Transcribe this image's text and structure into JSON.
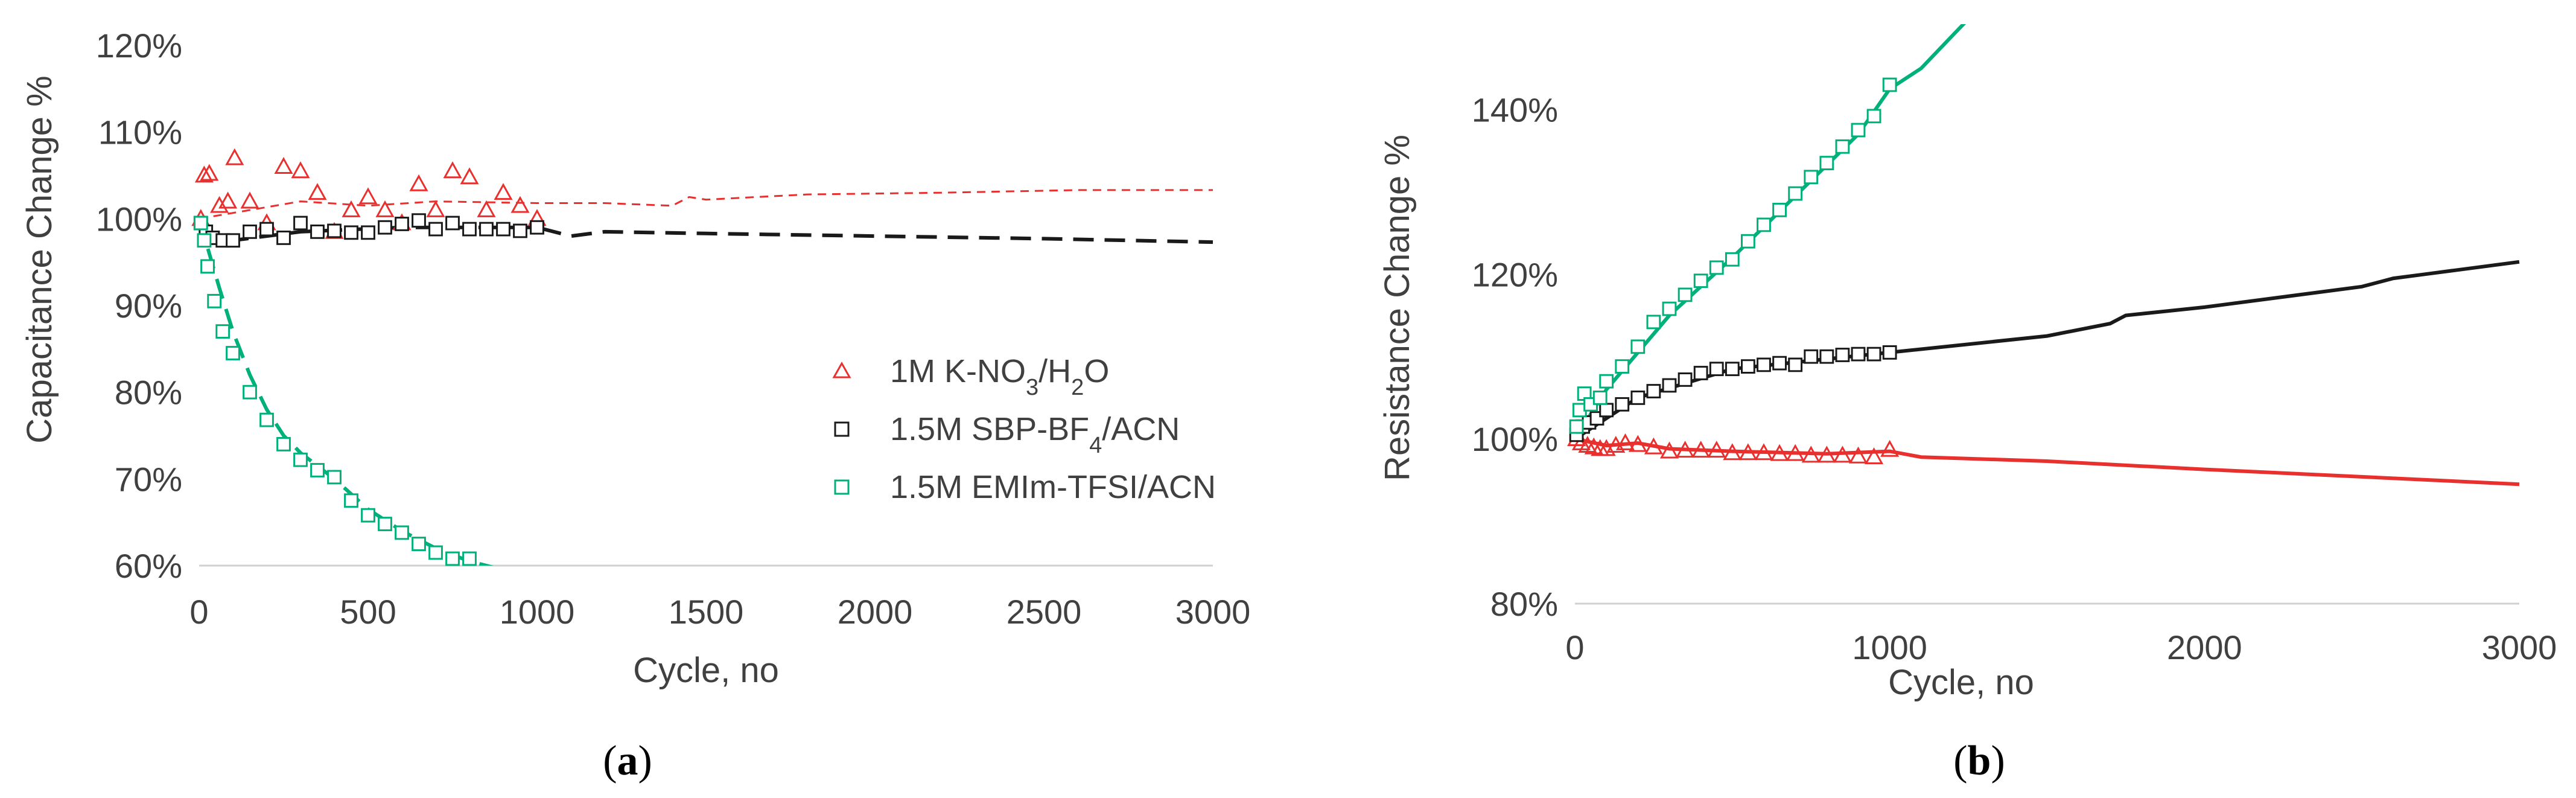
{
  "colors": {
    "red": "#e8302e",
    "black": "#1a1a1a",
    "green": "#00b07a",
    "axis": "#d0d0d0"
  },
  "chart_data": [
    {
      "type": "scatter",
      "panel": "a",
      "caption_letter": "a",
      "xlabel": "Cycle, no",
      "ylabel": "Capacitance Change %",
      "xlim": [
        0,
        3000
      ],
      "ylim": [
        60,
        120
      ],
      "xticks": [
        "0",
        "500",
        "1000",
        "1500",
        "2000",
        "2500",
        "3000"
      ],
      "yticks": [
        "60%",
        "70%",
        "80%",
        "90%",
        "100%",
        "110%",
        "120%"
      ],
      "legend": [
        {
          "series": 0,
          "text": "1M K-NO",
          "sub1": "3",
          "mid": "/H",
          "sub2": "2",
          "end": "O"
        },
        {
          "series": 1,
          "text": "1.5M SBP-BF",
          "sub1": "4",
          "mid": "/ACN",
          "sub2": "",
          "end": ""
        },
        {
          "series": 2,
          "text": "1.5M EMIm-TFSI/ACN",
          "sub1": "",
          "mid": "",
          "sub2": "",
          "end": ""
        }
      ],
      "series": [
        {
          "name": "1M K-NO3/H2O",
          "color": "red",
          "marker": "triangle",
          "dash": "small",
          "points": [
            [
              5,
              100
            ],
            [
              15,
              105
            ],
            [
              30,
              105.2
            ],
            [
              60,
              101.5
            ],
            [
              85,
              102
            ],
            [
              105,
              107
            ],
            [
              150,
              102
            ],
            [
              200,
              99.5
            ],
            [
              250,
              106
            ],
            [
              300,
              105.5
            ],
            [
              350,
              103
            ],
            [
              400,
              98.5
            ],
            [
              450,
              101
            ],
            [
              500,
              102.5
            ],
            [
              550,
              101
            ],
            [
              600,
              99.5
            ],
            [
              650,
              104
            ],
            [
              700,
              101
            ],
            [
              750,
              105.5
            ],
            [
              800,
              104.8
            ],
            [
              850,
              101
            ],
            [
              900,
              103
            ],
            [
              950,
              101.5
            ],
            [
              1000,
              100
            ]
          ],
          "line": [
            [
              0,
              100
            ],
            [
              150,
              101
            ],
            [
              300,
              102
            ],
            [
              500,
              101.5
            ],
            [
              700,
              102
            ],
            [
              1000,
              101.8
            ],
            [
              1200,
              101.8
            ],
            [
              1400,
              101.5
            ],
            [
              1450,
              102.5
            ],
            [
              1500,
              102.2
            ],
            [
              1800,
              102.8
            ],
            [
              2200,
              103
            ],
            [
              2600,
              103.3
            ],
            [
              3000,
              103.3
            ]
          ]
        },
        {
          "name": "1.5M SBP-BF4/ACN",
          "color": "black",
          "marker": "square",
          "dash": "large",
          "points": [
            [
              5,
              99.5
            ],
            [
              20,
              98.5
            ],
            [
              40,
              97.8
            ],
            [
              70,
              97.5
            ],
            [
              100,
              97.5
            ],
            [
              150,
              98.5
            ],
            [
              200,
              98.8
            ],
            [
              250,
              97.8
            ],
            [
              300,
              99.5
            ],
            [
              350,
              98.5
            ],
            [
              400,
              98.6
            ],
            [
              450,
              98.4
            ],
            [
              500,
              98.4
            ],
            [
              550,
              99
            ],
            [
              600,
              99.4
            ],
            [
              650,
              99.8
            ],
            [
              700,
              98.8
            ],
            [
              750,
              99.5
            ],
            [
              800,
              98.8
            ],
            [
              850,
              98.8
            ],
            [
              900,
              98.8
            ],
            [
              950,
              98.6
            ],
            [
              1000,
              99
            ]
          ],
          "line": [
            [
              0,
              99
            ],
            [
              100,
              97.5
            ],
            [
              300,
              98.5
            ],
            [
              600,
              99
            ],
            [
              1000,
              99
            ],
            [
              1100,
              98
            ],
            [
              1200,
              98.5
            ],
            [
              1500,
              98.3
            ],
            [
              2000,
              98
            ],
            [
              2500,
              97.7
            ],
            [
              3000,
              97.3
            ]
          ]
        },
        {
          "name": "1.5M EMIm-TFSI/ACN",
          "color": "green",
          "marker": "square",
          "dash": "large",
          "points": [
            [
              5,
              99.5
            ],
            [
              15,
              97.5
            ],
            [
              25,
              94.5
            ],
            [
              45,
              90.5
            ],
            [
              70,
              87
            ],
            [
              100,
              84.5
            ],
            [
              150,
              80
            ],
            [
              200,
              76.8
            ],
            [
              250,
              74
            ],
            [
              300,
              72.2
            ],
            [
              350,
              71
            ],
            [
              400,
              70.2
            ],
            [
              450,
              67.5
            ],
            [
              500,
              65.8
            ],
            [
              550,
              64.8
            ],
            [
              600,
              63.8
            ],
            [
              650,
              62.5
            ],
            [
              700,
              61.5
            ],
            [
              750,
              60.8
            ],
            [
              800,
              60.8
            ]
          ],
          "line": [
            [
              0,
              100
            ],
            [
              30,
              96
            ],
            [
              60,
              92
            ],
            [
              100,
              87
            ],
            [
              150,
              82
            ],
            [
              200,
              78
            ],
            [
              250,
              75
            ],
            [
              300,
              73
            ],
            [
              400,
              70
            ],
            [
              500,
              66.5
            ],
            [
              600,
              64
            ],
            [
              700,
              62
            ],
            [
              800,
              60.5
            ],
            [
              900,
              59.5
            ]
          ]
        }
      ]
    },
    {
      "type": "line",
      "panel": "b",
      "caption_letter": "b",
      "xlabel": "Cycle, no",
      "ylabel": "Resistance Change %",
      "xlim": [
        0,
        3000
      ],
      "ylim": [
        80,
        150
      ],
      "xticks": [
        "0",
        "1000",
        "2000",
        "3000"
      ],
      "yticks": [
        "80%",
        "100%",
        "120%",
        "140%"
      ],
      "series": [
        {
          "name": "1M K-NO3/H2O",
          "color": "red",
          "marker": "triangle",
          "points": [
            [
              5,
              100
            ],
            [
              20,
              99.5
            ],
            [
              40,
              99.2
            ],
            [
              60,
              99
            ],
            [
              80,
              98.8
            ],
            [
              100,
              98.8
            ],
            [
              130,
              99.2
            ],
            [
              160,
              99.5
            ],
            [
              200,
              99.3
            ],
            [
              250,
              99
            ],
            [
              300,
              98.5
            ],
            [
              350,
              98.6
            ],
            [
              400,
              98.6
            ],
            [
              450,
              98.6
            ],
            [
              500,
              98.3
            ],
            [
              550,
              98.3
            ],
            [
              600,
              98.3
            ],
            [
              650,
              98.2
            ],
            [
              700,
              98.2
            ],
            [
              750,
              98
            ],
            [
              800,
              98
            ],
            [
              850,
              98
            ],
            [
              900,
              97.9
            ],
            [
              950,
              97.8
            ],
            [
              1000,
              98.7
            ]
          ],
          "line": [
            [
              0,
              100
            ],
            [
              100,
              99.2
            ],
            [
              200,
              99.5
            ],
            [
              300,
              98.8
            ],
            [
              500,
              98.5
            ],
            [
              800,
              98.2
            ],
            [
              1000,
              98.5
            ],
            [
              1100,
              97.8
            ],
            [
              1500,
              97.3
            ],
            [
              2000,
              96.3
            ],
            [
              2500,
              95.4
            ],
            [
              3000,
              94.5
            ]
          ]
        },
        {
          "name": "1.5M SBP-BF4/ACN",
          "color": "black",
          "marker": "square",
          "points": [
            [
              5,
              100.5
            ],
            [
              25,
              101.5
            ],
            [
              45,
              102
            ],
            [
              70,
              102.5
            ],
            [
              100,
              103.5
            ],
            [
              150,
              104.2
            ],
            [
              200,
              105
            ],
            [
              250,
              105.8
            ],
            [
              300,
              106.5
            ],
            [
              350,
              107.2
            ],
            [
              400,
              108
            ],
            [
              450,
              108.5
            ],
            [
              500,
              108.5
            ],
            [
              550,
              108.8
            ],
            [
              600,
              109
            ],
            [
              650,
              109.2
            ],
            [
              700,
              109
            ],
            [
              750,
              110
            ],
            [
              800,
              110
            ],
            [
              850,
              110.2
            ],
            [
              900,
              110.3
            ],
            [
              950,
              110.3
            ],
            [
              1000,
              110.5
            ]
          ],
          "line": [
            [
              0,
              100
            ],
            [
              200,
              105
            ],
            [
              500,
              108.5
            ],
            [
              1000,
              110.5
            ],
            [
              1500,
              112.5
            ],
            [
              1700,
              114
            ],
            [
              1750,
              115
            ],
            [
              2000,
              116
            ],
            [
              2500,
              118.5
            ],
            [
              2600,
              119.5
            ],
            [
              2700,
              120
            ],
            [
              3000,
              121.5
            ]
          ]
        },
        {
          "name": "1.5M EMIm-TFSI/ACN",
          "color": "green",
          "marker": "square",
          "points": [
            [
              5,
              101.5
            ],
            [
              15,
              103.5
            ],
            [
              30,
              105.5
            ],
            [
              50,
              104.2
            ],
            [
              80,
              105
            ],
            [
              100,
              107
            ],
            [
              150,
              108.8
            ],
            [
              200,
              111.2
            ],
            [
              250,
              114.2
            ],
            [
              300,
              115.8
            ],
            [
              350,
              117.5
            ],
            [
              400,
              119.2
            ],
            [
              450,
              120.8
            ],
            [
              500,
              121.8
            ],
            [
              550,
              124
            ],
            [
              600,
              126
            ],
            [
              650,
              127.8
            ],
            [
              700,
              129.8
            ],
            [
              750,
              131.8
            ],
            [
              800,
              133.5
            ],
            [
              850,
              135.5
            ],
            [
              900,
              137.5
            ],
            [
              950,
              139.2
            ],
            [
              1000,
              143
            ]
          ],
          "line": [
            [
              0,
              100
            ],
            [
              100,
              106
            ],
            [
              300,
              115
            ],
            [
              500,
              122
            ],
            [
              700,
              129.5
            ],
            [
              900,
              137
            ],
            [
              1000,
              142.5
            ],
            [
              1100,
              145
            ],
            [
              1200,
              149
            ],
            [
              1250,
              151
            ]
          ]
        }
      ]
    }
  ]
}
